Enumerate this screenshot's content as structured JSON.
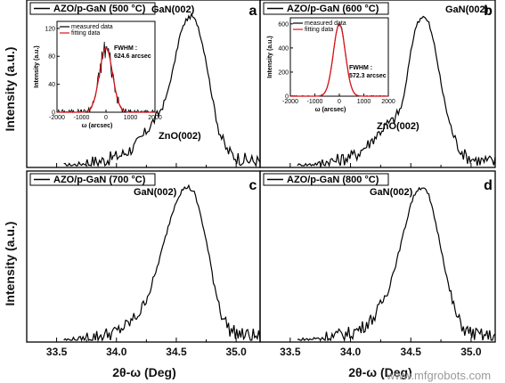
{
  "figure": {
    "y_axis_label": "Intensity (a.u.)",
    "x_axis_label": "2θ-ω (Deg)",
    "watermark": "www.mfgrobots.com"
  },
  "chart_data": [
    {
      "type": "line",
      "panel_letter": "a",
      "legend": "AZO/p-GaN (500 °C)",
      "peak_label": "GaN(002)",
      "shoulder_label": "ZnO(002)",
      "xlim": [
        33.25,
        35.2
      ],
      "ylim": [
        0,
        1
      ],
      "xticks": [
        "33.5",
        "34.0",
        "34.5",
        "35.0"
      ],
      "x": [
        33.3,
        33.6,
        33.9,
        34.05,
        34.15,
        34.22,
        34.3,
        34.36,
        34.42,
        34.48,
        34.53,
        34.58,
        34.63,
        34.68,
        34.74,
        34.8,
        34.86,
        34.92,
        35.0,
        35.1,
        35.2
      ],
      "y": [
        0.0,
        0.0,
        0.03,
        0.07,
        0.12,
        0.19,
        0.28,
        0.35,
        0.46,
        0.66,
        0.86,
        0.96,
        0.99,
        0.93,
        0.73,
        0.45,
        0.22,
        0.1,
        0.05,
        0.03,
        0.02
      ],
      "inset": {
        "legend": [
          "measured data",
          "fitting data"
        ],
        "ylabel": "Intensity (a.u.)",
        "xlabel": "ω (arcsec)",
        "xlim": [
          -2000,
          2000
        ],
        "ylim": [
          0,
          130
        ],
        "xticks": [
          "-2000",
          "-1000",
          "0",
          "1000",
          "2000"
        ],
        "yticks": [
          "0",
          "40",
          "80",
          "120"
        ],
        "fwhm_label": "FWHM :",
        "fwhm_value": "624.6 arcsec",
        "peak_value": 92,
        "width": 624.6
      }
    },
    {
      "type": "line",
      "panel_letter": "b",
      "legend": "AZO/p-GaN (600 °C)",
      "peak_label": "GaN(002)",
      "shoulder_label": "ZnO(002)",
      "xlim": [
        33.25,
        35.2
      ],
      "ylim": [
        0,
        1
      ],
      "xticks": [
        "33.5",
        "34.0",
        "34.5",
        "35.0"
      ],
      "x": [
        33.3,
        33.6,
        33.9,
        34.05,
        34.15,
        34.22,
        34.3,
        34.36,
        34.42,
        34.46,
        34.5,
        34.55,
        34.6,
        34.65,
        34.7,
        34.76,
        34.82,
        34.88,
        34.95,
        35.05,
        35.2
      ],
      "y": [
        0.0,
        0.0,
        0.03,
        0.07,
        0.14,
        0.2,
        0.27,
        0.3,
        0.38,
        0.53,
        0.76,
        0.94,
        0.99,
        0.94,
        0.78,
        0.5,
        0.28,
        0.14,
        0.06,
        0.03,
        0.02
      ],
      "inset": {
        "legend": [
          "measured data",
          "fitting data"
        ],
        "ylabel": "Intensity (a.u.)",
        "xlabel": "ω (arcsec)",
        "xlim": [
          -2000,
          2000
        ],
        "ylim": [
          0,
          650
        ],
        "xticks": [
          "-2000",
          "-1000",
          "0",
          "1000",
          "2000"
        ],
        "yticks": [
          "0",
          "200",
          "400",
          "600"
        ],
        "fwhm_label": "FWHM :",
        "fwhm_value": "572.3 arcsec",
        "peak_value": 600,
        "width": 572.3
      }
    },
    {
      "type": "line",
      "panel_letter": "c",
      "legend": "AZO/p-GaN (700 °C)",
      "peak_label": "GaN(002)",
      "xlim": [
        33.25,
        35.2
      ],
      "ylim": [
        0,
        1
      ],
      "xticks": [
        "33.5",
        "34.0",
        "34.5",
        "35.0"
      ],
      "x": [
        33.3,
        33.6,
        33.85,
        34.0,
        34.1,
        34.2,
        34.3,
        34.38,
        34.45,
        34.5,
        34.55,
        34.6,
        34.65,
        34.7,
        34.76,
        34.82,
        34.88,
        34.95,
        35.05,
        35.2
      ],
      "y": [
        0.0,
        0.0,
        0.02,
        0.05,
        0.1,
        0.18,
        0.36,
        0.58,
        0.78,
        0.9,
        0.97,
        0.99,
        0.95,
        0.82,
        0.6,
        0.35,
        0.16,
        0.06,
        0.03,
        0.02
      ]
    },
    {
      "type": "line",
      "panel_letter": "d",
      "legend": "AZO/p-GaN (800 °C)",
      "peak_label": "GaN(002)",
      "xlim": [
        33.25,
        35.2
      ],
      "ylim": [
        0,
        1
      ],
      "xticks": [
        "33.5",
        "34.0",
        "34.5",
        "35.0"
      ],
      "x": [
        33.3,
        33.6,
        33.85,
        34.0,
        34.1,
        34.2,
        34.3,
        34.38,
        34.45,
        34.5,
        34.55,
        34.6,
        34.65,
        34.7,
        34.76,
        34.82,
        34.88,
        34.95,
        35.05,
        35.2
      ],
      "y": [
        0.0,
        0.0,
        0.02,
        0.04,
        0.08,
        0.15,
        0.3,
        0.5,
        0.72,
        0.88,
        0.97,
        0.99,
        0.93,
        0.78,
        0.56,
        0.32,
        0.15,
        0.06,
        0.03,
        0.02
      ]
    }
  ]
}
